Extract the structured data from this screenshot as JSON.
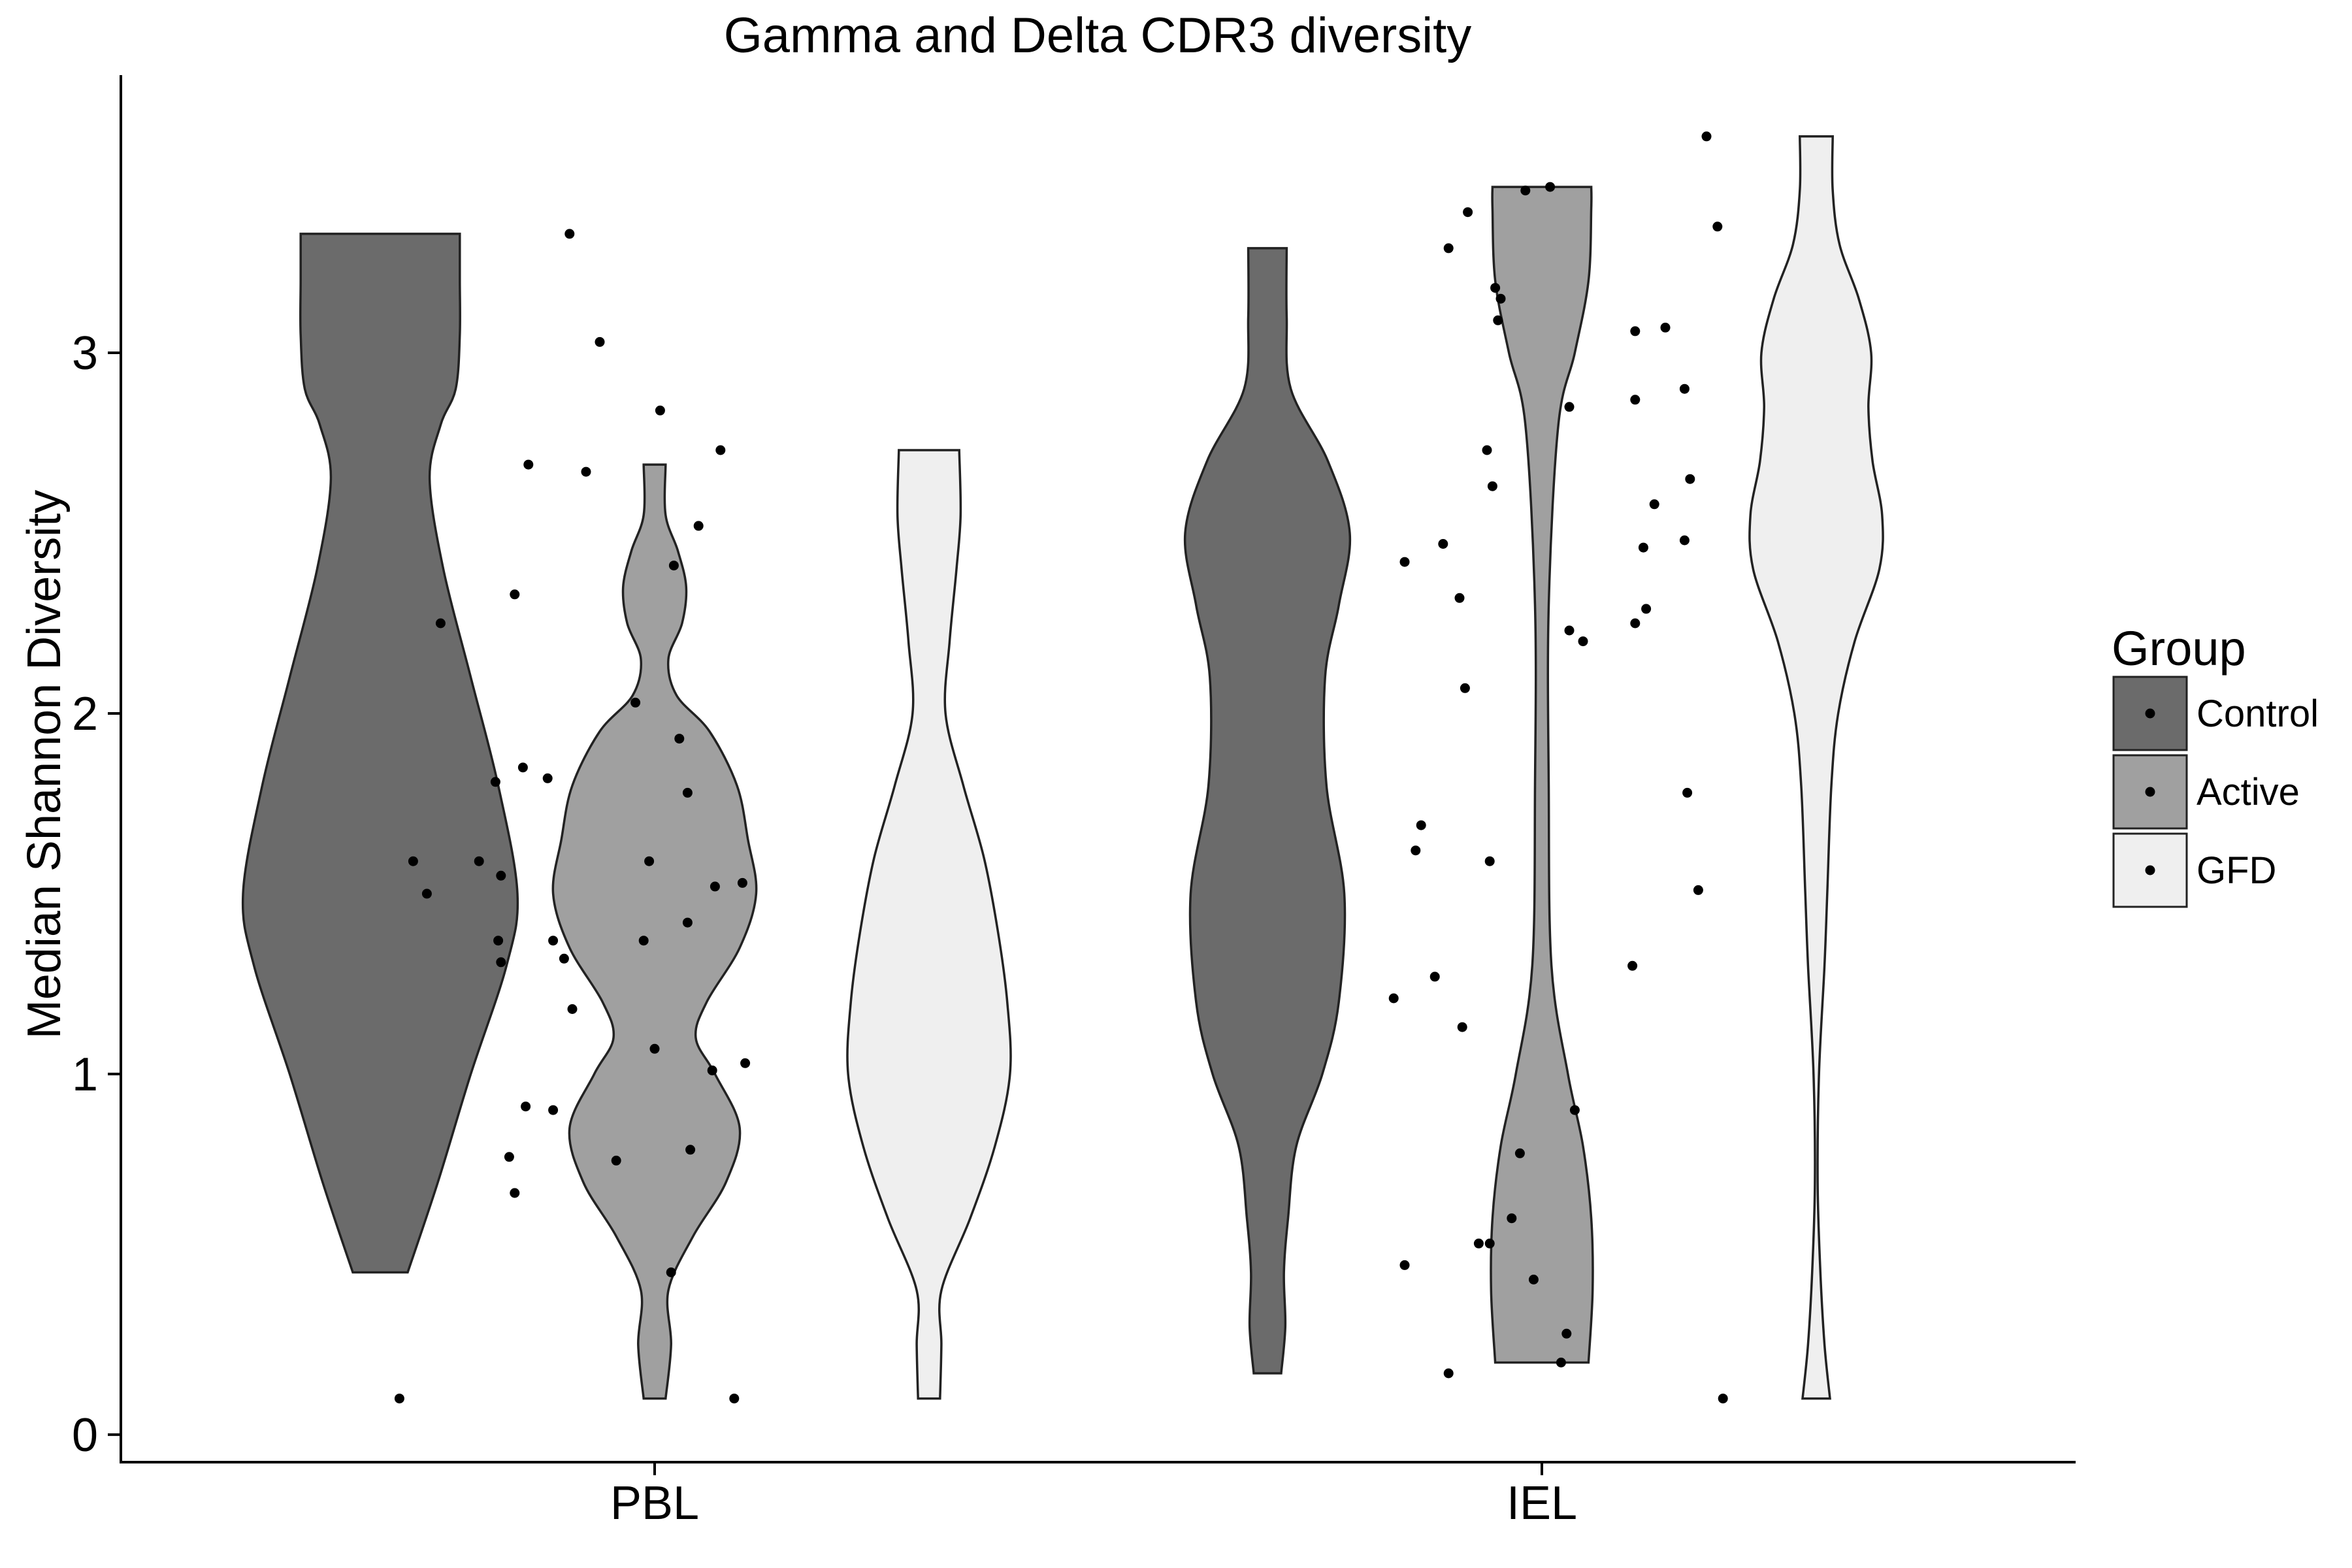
{
  "chart_data": {
    "type": "violin",
    "title": "Gamma and Delta CDR3 diversity",
    "xlabel": "",
    "ylabel": "Median Shannon Diversity",
    "ylim": [
      -0.08,
      3.77
    ],
    "yticks": [
      0,
      1,
      2,
      3
    ],
    "categories": [
      "PBL",
      "IEL"
    ],
    "legend": {
      "title": "Group",
      "position": "right",
      "entries": [
        {
          "name": "Control",
          "color": "#6b6b6b"
        },
        {
          "name": "Active",
          "color": "#a0a0a0"
        },
        {
          "name": "GFD",
          "color": "#efefef"
        }
      ]
    },
    "grid": false,
    "series": [
      {
        "name": "Control",
        "category": "PBL",
        "color": "#6b6b6b",
        "range": [
          0.45,
          3.33
        ],
        "profile": [
          [
            0.45,
            0.2
          ],
          [
            0.7,
            0.42
          ],
          [
            1.0,
            0.66
          ],
          [
            1.3,
            0.92
          ],
          [
            1.5,
            1.0
          ],
          [
            1.8,
            0.86
          ],
          [
            2.1,
            0.66
          ],
          [
            2.4,
            0.46
          ],
          [
            2.65,
            0.36
          ],
          [
            2.8,
            0.44
          ],
          [
            2.9,
            0.55
          ],
          [
            3.05,
            0.58
          ],
          [
            3.2,
            0.58
          ],
          [
            3.33,
            0.58
          ]
        ],
        "points": [
          [
            -0.56,
            1.55
          ],
          [
            -0.25,
            2.67
          ],
          [
            -0.47,
            0.91
          ],
          [
            -0.33,
            1.32
          ],
          [
            -0.3,
            1.18
          ],
          [
            -0.2,
            3.03
          ],
          [
            -0.14,
            0.76
          ],
          [
            -0.07,
            2.03
          ],
          [
            0.02,
            2.84
          ],
          [
            -0.02,
            1.59
          ],
          [
            0.12,
            1.78
          ],
          [
            0.12,
            1.42
          ],
          [
            -0.31,
            3.33
          ],
          [
            0.06,
            0.45
          ]
        ]
      },
      {
        "name": "Active",
        "category": "PBL",
        "color": "#a0a0a0",
        "range": [
          0.1,
          2.69
        ],
        "profile": [
          [
            0.1,
            0.08
          ],
          [
            0.25,
            0.12
          ],
          [
            0.4,
            0.1
          ],
          [
            0.55,
            0.28
          ],
          [
            0.7,
            0.52
          ],
          [
            0.85,
            0.62
          ],
          [
            1.0,
            0.44
          ],
          [
            1.1,
            0.3
          ],
          [
            1.2,
            0.38
          ],
          [
            1.35,
            0.62
          ],
          [
            1.5,
            0.74
          ],
          [
            1.65,
            0.68
          ],
          [
            1.8,
            0.6
          ],
          [
            1.95,
            0.4
          ],
          [
            2.05,
            0.16
          ],
          [
            2.15,
            0.1
          ],
          [
            2.25,
            0.2
          ],
          [
            2.35,
            0.23
          ],
          [
            2.45,
            0.17
          ],
          [
            2.55,
            0.08
          ],
          [
            2.69,
            0.08
          ]
        ],
        "points": [
          [
            -0.88,
            1.59
          ],
          [
            -0.83,
            1.5
          ],
          [
            -0.93,
            0.1
          ],
          [
            -0.78,
            2.25
          ],
          [
            -0.64,
            1.59
          ],
          [
            -0.58,
            1.81
          ],
          [
            -0.57,
            1.37
          ],
          [
            -0.56,
            1.31
          ],
          [
            -0.53,
            0.77
          ],
          [
            -0.51,
            0.67
          ],
          [
            -0.51,
            2.33
          ],
          [
            -0.48,
            1.85
          ],
          [
            -0.46,
            2.69
          ],
          [
            -0.39,
            1.82
          ],
          [
            -0.37,
            1.37
          ],
          [
            -0.37,
            0.9
          ]
        ]
      },
      {
        "name": "GFD",
        "category": "PBL",
        "color": "#efefef",
        "range": [
          0.1,
          2.73
        ],
        "profile": [
          [
            0.1,
            0.08
          ],
          [
            0.25,
            0.09
          ],
          [
            0.4,
            0.09
          ],
          [
            0.6,
            0.3
          ],
          [
            0.8,
            0.48
          ],
          [
            1.0,
            0.59
          ],
          [
            1.2,
            0.57
          ],
          [
            1.4,
            0.5
          ],
          [
            1.6,
            0.4
          ],
          [
            1.8,
            0.25
          ],
          [
            2.0,
            0.12
          ],
          [
            2.2,
            0.15
          ],
          [
            2.4,
            0.2
          ],
          [
            2.55,
            0.23
          ],
          [
            2.73,
            0.22
          ]
        ],
        "points": [
          [
            -0.04,
            1.37
          ],
          [
            0.0,
            1.07
          ],
          [
            0.07,
            2.41
          ],
          [
            0.09,
            1.93
          ],
          [
            0.13,
            0.79
          ],
          [
            0.16,
            2.52
          ],
          [
            0.21,
            1.01
          ],
          [
            0.22,
            1.52
          ],
          [
            0.24,
            2.73
          ],
          [
            0.29,
            0.1
          ],
          [
            0.32,
            1.53
          ],
          [
            0.33,
            1.03
          ]
        ]
      },
      {
        "name": "Control",
        "category": "IEL",
        "color": "#6b6b6b",
        "range": [
          0.17,
          3.29
        ],
        "profile": [
          [
            0.17,
            0.1
          ],
          [
            0.3,
            0.13
          ],
          [
            0.45,
            0.12
          ],
          [
            0.6,
            0.15
          ],
          [
            0.8,
            0.21
          ],
          [
            1.0,
            0.4
          ],
          [
            1.2,
            0.52
          ],
          [
            1.5,
            0.56
          ],
          [
            1.8,
            0.43
          ],
          [
            2.1,
            0.42
          ],
          [
            2.3,
            0.52
          ],
          [
            2.5,
            0.6
          ],
          [
            2.7,
            0.44
          ],
          [
            2.9,
            0.17
          ],
          [
            3.1,
            0.14
          ],
          [
            3.29,
            0.14
          ]
        ],
        "points": [
          [
            -0.54,
            1.21
          ],
          [
            -0.5,
            0.47
          ],
          [
            -0.5,
            2.42
          ],
          [
            -0.46,
            1.62
          ],
          [
            -0.44,
            1.69
          ],
          [
            -0.39,
            1.27
          ],
          [
            -0.36,
            2.47
          ],
          [
            -0.34,
            3.29
          ],
          [
            -0.34,
            0.17
          ],
          [
            -0.3,
            2.32
          ],
          [
            -0.29,
            1.13
          ],
          [
            -0.28,
            2.07
          ],
          [
            -0.23,
            0.53
          ],
          [
            -0.2,
            2.73
          ],
          [
            -0.18,
            2.63
          ],
          [
            -0.19,
            1.59
          ]
        ]
      },
      {
        "name": "Active",
        "category": "IEL",
        "color": "#a0a0a0",
        "range": [
          0.2,
          3.46
        ],
        "profile": [
          [
            0.2,
            0.34
          ],
          [
            0.4,
            0.37
          ],
          [
            0.6,
            0.36
          ],
          [
            0.8,
            0.3
          ],
          [
            1.0,
            0.19
          ],
          [
            1.3,
            0.07
          ],
          [
            1.8,
            0.05
          ],
          [
            2.3,
            0.05
          ],
          [
            2.8,
            0.12
          ],
          [
            3.0,
            0.24
          ],
          [
            3.2,
            0.34
          ],
          [
            3.4,
            0.36
          ],
          [
            3.46,
            0.36
          ]
        ],
        "points": [
          [
            -0.27,
            3.39
          ],
          [
            -0.19,
            0.53
          ],
          [
            -0.17,
            3.18
          ],
          [
            -0.16,
            3.09
          ],
          [
            -0.15,
            3.15
          ],
          [
            -0.11,
            0.6
          ],
          [
            -0.08,
            0.78
          ],
          [
            -0.06,
            3.45
          ],
          [
            -0.03,
            0.43
          ],
          [
            0.03,
            3.46
          ],
          [
            0.07,
            0.2
          ],
          [
            0.09,
            0.28
          ],
          [
            0.1,
            2.23
          ],
          [
            0.1,
            2.85
          ],
          [
            0.12,
            0.9
          ],
          [
            0.15,
            2.2
          ]
        ]
      },
      {
        "name": "GFD",
        "category": "IEL",
        "color": "#efefef",
        "range": [
          0.1,
          3.6
        ],
        "profile": [
          [
            0.1,
            0.1
          ],
          [
            0.25,
            0.06
          ],
          [
            0.45,
            0.03
          ],
          [
            0.7,
            0.01
          ],
          [
            1.0,
            0.02
          ],
          [
            1.3,
            0.06
          ],
          [
            1.5,
            0.08
          ],
          [
            1.8,
            0.11
          ],
          [
            2.0,
            0.16
          ],
          [
            2.2,
            0.28
          ],
          [
            2.4,
            0.46
          ],
          [
            2.55,
            0.48
          ],
          [
            2.7,
            0.41
          ],
          [
            2.85,
            0.38
          ],
          [
            3.0,
            0.4
          ],
          [
            3.15,
            0.31
          ],
          [
            3.3,
            0.17
          ],
          [
            3.45,
            0.12
          ],
          [
            3.6,
            0.12
          ]
        ],
        "points": [
          [
            0.33,
            1.3
          ],
          [
            0.34,
            2.25
          ],
          [
            0.34,
            3.06
          ],
          [
            0.34,
            2.87
          ],
          [
            0.37,
            2.46
          ],
          [
            0.38,
            2.29
          ],
          [
            0.41,
            2.58
          ],
          [
            0.45,
            3.07
          ],
          [
            0.52,
            2.48
          ],
          [
            0.52,
            2.9
          ],
          [
            0.53,
            1.78
          ],
          [
            0.54,
            2.65
          ],
          [
            0.57,
            1.51
          ],
          [
            0.6,
            3.6
          ],
          [
            0.64,
            3.35
          ],
          [
            0.66,
            0.1
          ]
        ]
      }
    ]
  }
}
